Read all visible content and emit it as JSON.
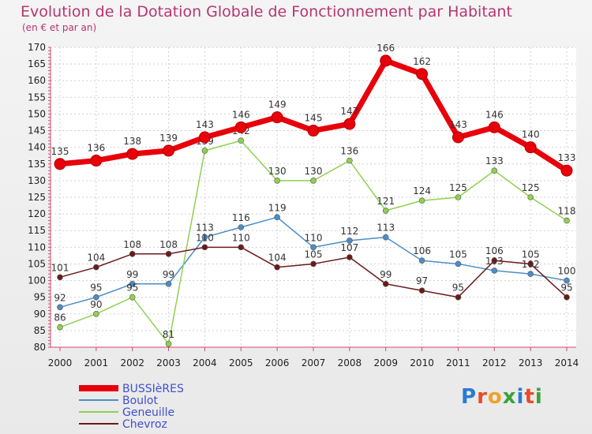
{
  "header": {
    "title": "Evolution de la Dotation Globale de Fonctionnement par Habitant",
    "subtitle": "(en € et par an)"
  },
  "brand": {
    "text": "Proxiti"
  },
  "chart_data": {
    "type": "line",
    "title": "Evolution de la Dotation Globale de Fonctionnement par Habitant",
    "subtitle": "(en € et par an)",
    "x": [
      2000,
      2001,
      2002,
      2003,
      2004,
      2005,
      2006,
      2007,
      2008,
      2009,
      2010,
      2011,
      2012,
      2013,
      2014
    ],
    "ylim": [
      80,
      170
    ],
    "yticks": [
      80,
      85,
      90,
      95,
      100,
      105,
      110,
      115,
      120,
      125,
      130,
      135,
      140,
      145,
      150,
      155,
      160,
      165,
      170
    ],
    "grid": true,
    "legend_position": "bottom-left",
    "series": [
      {
        "name": "BUSSIèRES",
        "color": "#e8000b",
        "values": [
          135,
          136,
          138,
          139,
          143,
          146,
          149,
          145,
          147,
          166,
          162,
          143,
          146,
          140,
          133
        ]
      },
      {
        "name": "Boulot",
        "color": "#4b8ec7",
        "values": [
          92,
          95,
          99,
          99,
          113,
          116,
          119,
          110,
          112,
          113,
          106,
          105,
          103,
          102,
          100
        ]
      },
      {
        "name": "Geneuille",
        "color": "#8fd14f",
        "values": [
          86,
          90,
          95,
          81,
          139,
          142,
          130,
          130,
          136,
          121,
          124,
          125,
          133,
          125,
          118
        ]
      },
      {
        "name": "Chevroz",
        "color": "#6b1a1a",
        "values": [
          101,
          104,
          108,
          108,
          110,
          110,
          104,
          105,
          107,
          99,
          97,
          95,
          106,
          105,
          95
        ]
      }
    ]
  }
}
